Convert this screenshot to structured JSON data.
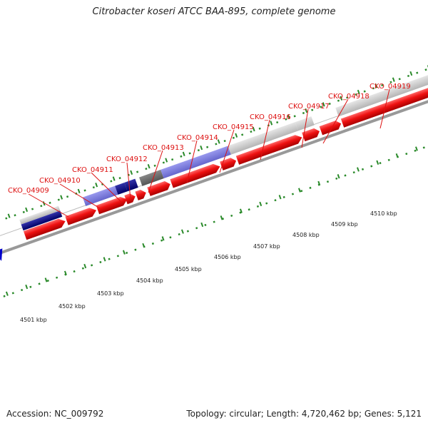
{
  "title": "Citrobacter koseri ATCC BAA-895, complete genome",
  "genes": [
    {
      "label": "CKO_04909"
    },
    {
      "label": "CKO_04910"
    },
    {
      "label": "CKO_04911"
    },
    {
      "label": "CKO_04912"
    },
    {
      "label": "CKO_04913"
    },
    {
      "label": "CKO_04914"
    },
    {
      "label": "CKO_04915"
    },
    {
      "label": "CKO_04916"
    },
    {
      "label": "CKO_04917"
    },
    {
      "label": "CKO_04918"
    },
    {
      "label": "CKO_04919"
    }
  ],
  "kbp_ticks": [
    {
      "label": "4501 kbp"
    },
    {
      "label": "4502 kbp"
    },
    {
      "label": "4503 kbp"
    },
    {
      "label": "4504 kbp"
    },
    {
      "label": "4505 kbp"
    },
    {
      "label": "4506 kbp"
    },
    {
      "label": "4507 kbp"
    },
    {
      "label": "4508 kbp"
    },
    {
      "label": "4509 kbp"
    },
    {
      "label": "4510 kbp"
    }
  ],
  "footer": {
    "accession": "Accession: NC_009792",
    "meta": "Topology: circular; Length: 4,720,462 bp; Genes: 5,121"
  },
  "colors": {
    "cds": "#ee1111",
    "backbone": "#999999",
    "tick": "#228822",
    "label": "#dd1111",
    "blue_feature": "#7777dd",
    "navy_feature": "#000080",
    "grey_feature": "#cccccc"
  }
}
